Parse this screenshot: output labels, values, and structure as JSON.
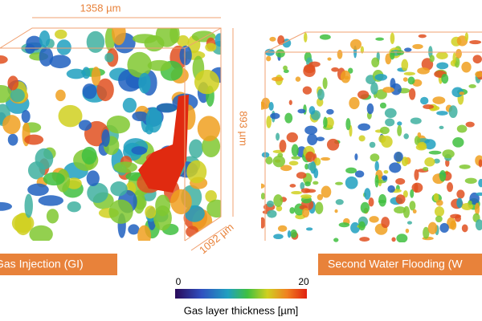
{
  "panels": [
    {
      "caption": "Gas Injection (GI)",
      "dimensions": {
        "width": "1358 µm",
        "height": "893 µm",
        "depth": "1092 µm"
      }
    },
    {
      "caption": "Second Water Flooding (W"
    }
  ],
  "colorbar": {
    "min": 0,
    "max": 20,
    "label": "Gas layer thickness [µm]"
  }
}
